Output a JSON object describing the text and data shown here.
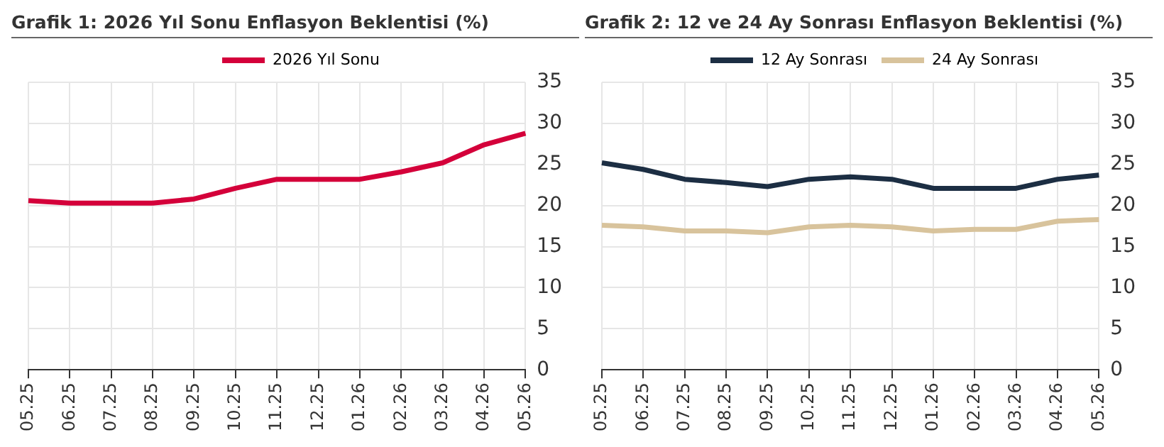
{
  "chart_data": [
    {
      "type": "line",
      "title": "Grafik 1: 2026 Yıl Sonu Enflasyon Beklentisi (%)",
      "categories": [
        "05.25",
        "06.25",
        "07.25",
        "08.25",
        "09.25",
        "10.25",
        "11.25",
        "12.25",
        "01.26",
        "02.26",
        "03.26",
        "04.26",
        "05.26"
      ],
      "series": [
        {
          "name": "2026 Yıl Sonu",
          "color": "#d4003a",
          "values": [
            20.6,
            20.3,
            20.3,
            20.3,
            20.8,
            22.1,
            23.2,
            23.2,
            23.2,
            24.1,
            25.2,
            27.4,
            28.8
          ]
        }
      ],
      "ylim": [
        0,
        35
      ],
      "yticks": [
        0,
        5,
        10,
        15,
        20,
        25,
        30,
        35
      ],
      "grid": true,
      "legend": "top",
      "marker": "none"
    },
    {
      "type": "line",
      "title": "Grafik 2: 12 ve 24 Ay Sonrası Enflasyon Beklentisi (%)",
      "categories": [
        "05.25",
        "06.25",
        "07.25",
        "08.25",
        "09.25",
        "10.25",
        "11.25",
        "12.25",
        "01.26",
        "02.26",
        "03.26",
        "04.26",
        "05.26"
      ],
      "series": [
        {
          "name": "12 Ay Sonrası",
          "color": "#1c2e43",
          "values": [
            25.2,
            24.4,
            23.2,
            22.8,
            22.3,
            23.2,
            23.5,
            23.2,
            22.1,
            22.1,
            22.1,
            23.2,
            23.7
          ]
        },
        {
          "name": "24 Ay Sonrası",
          "color": "#d8c39c",
          "values": [
            17.6,
            17.4,
            16.9,
            16.9,
            16.7,
            17.4,
            17.6,
            17.4,
            16.9,
            17.1,
            17.1,
            18.1,
            18.3
          ]
        }
      ],
      "ylim": [
        0,
        35
      ],
      "yticks": [
        0,
        5,
        10,
        15,
        20,
        25,
        30,
        35
      ],
      "grid": true,
      "legend": "top",
      "marker": "none"
    }
  ]
}
